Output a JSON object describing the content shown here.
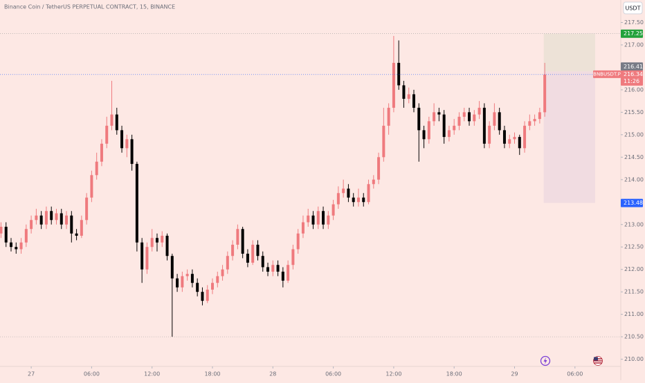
{
  "chart_data": {
    "type": "candlestick",
    "title": "Binance Coin / TetherUS PERPETUAL CONTRACT, 15, BINANCE",
    "currency": "USDT",
    "up_color": "#ef7a7e",
    "down_color": "#000000",
    "background": "#fde8e4",
    "x": [
      -3,
      -2.5,
      -2,
      -1.5,
      -1,
      -0.5,
      0,
      0.5,
      1,
      1.5,
      2,
      2.5,
      3,
      3.5,
      4,
      4.5,
      5,
      5.5,
      6,
      6.5,
      7,
      7.5,
      8,
      8.5,
      9,
      9.5,
      10,
      10.5,
      11,
      11.5,
      12,
      12.5,
      13,
      13.5,
      14,
      14.5,
      15,
      15.5,
      16,
      16.5,
      17,
      17.5,
      18,
      18.5,
      19,
      19.5,
      20,
      20.5,
      21,
      21.5,
      22,
      22.5,
      23,
      23.5,
      24,
      24.5,
      25,
      25.5,
      26,
      26.5,
      27,
      27.5,
      28,
      28.5,
      29,
      29.5,
      30,
      30.5,
      31,
      31.5,
      32,
      32.5,
      33,
      33.5,
      34,
      34.5,
      35,
      35.5,
      36,
      36.5,
      37,
      37.5,
      38,
      38.5,
      39,
      39.5,
      40,
      40.5,
      41,
      41.5,
      42,
      42.5,
      43,
      43.5,
      44,
      44.5,
      45,
      45.5,
      46,
      46.5,
      47,
      47.5,
      48,
      48.5,
      49,
      49.5,
      50,
      50.5,
      51
    ],
    "open": [
      212.8,
      212.95,
      212.6,
      212.5,
      212.45,
      212.6,
      212.9,
      213.1,
      213.2,
      213,
      213.3,
      213.1,
      213.25,
      213,
      213.2,
      212.8,
      212.75,
      213.1,
      213.6,
      214.1,
      214.4,
      214.8,
      215.2,
      215.45,
      215.1,
      214.7,
      214.9,
      214.35,
      212.6,
      212,
      212.5,
      212.7,
      212.6,
      212.75,
      212.3,
      211.8,
      211.6,
      211.85,
      211.9,
      211.7,
      211.5,
      211.3,
      211.55,
      211.7,
      211.85,
      212,
      212.3,
      212.55,
      212.9,
      212.35,
      212.15,
      212.55,
      212.3,
      212.05,
      211.95,
      212.1,
      211.95,
      211.75,
      212.1,
      212.45,
      212.8,
      213.05,
      213.2,
      213,
      213.3,
      213,
      213.2,
      213.45,
      213.7,
      213.8,
      213.6,
      213.5,
      213.6,
      213.5,
      213.9,
      214,
      214.5,
      215.2,
      215.6,
      216.6,
      216.1,
      215.8,
      215.9,
      215.6,
      215.1,
      214.9,
      215.3,
      215.5,
      215.45,
      214.95,
      215.1,
      215.2,
      215.4,
      215.5,
      215.3,
      215.45,
      215.6,
      214.8,
      215.2,
      215.5,
      215.1,
      214.8,
      214.9,
      214.95,
      214.7,
      215.2,
      215.3,
      215.35,
      215.5
    ],
    "high": [
      213.05,
      213.05,
      212.7,
      212.6,
      212.7,
      213,
      213.2,
      213.35,
      213.3,
      213.4,
      213.4,
      213.35,
      213.35,
      213.3,
      213.3,
      212.9,
      213.2,
      213.7,
      214.2,
      214.6,
      214.9,
      215.4,
      216.2,
      215.6,
      215.2,
      215,
      215,
      214.4,
      212.7,
      212.6,
      212.9,
      212.8,
      212.85,
      212.8,
      212.35,
      211.9,
      211.95,
      212,
      212,
      211.8,
      211.6,
      211.65,
      211.8,
      211.95,
      212.1,
      212.4,
      212.65,
      213,
      212.95,
      212.45,
      212.65,
      212.65,
      212.4,
      212.15,
      212.2,
      212.2,
      212.05,
      212.2,
      212.55,
      212.9,
      213.2,
      213.35,
      213.3,
      213.4,
      213.4,
      213.3,
      213.55,
      213.85,
      214,
      213.9,
      213.7,
      213.8,
      213.7,
      214,
      214.1,
      214.6,
      215.6,
      215.7,
      217.2,
      217.1,
      216.2,
      216.05,
      216,
      215.7,
      215.2,
      215.4,
      215.7,
      215.6,
      215.55,
      215.2,
      215.35,
      215.5,
      215.6,
      215.6,
      215.55,
      215.75,
      215.7,
      215.3,
      215.7,
      215.6,
      215.2,
      215,
      215.05,
      215,
      215.3,
      215.45,
      215.45,
      215.6,
      216.6
    ],
    "low": [
      212.7,
      212.5,
      212.4,
      212.35,
      212.35,
      212.5,
      212.8,
      213,
      212.9,
      212.9,
      213,
      213,
      212.9,
      212.9,
      212.6,
      212.65,
      212.7,
      213,
      213.5,
      214,
      214.3,
      214.7,
      215.1,
      215,
      214.6,
      214.5,
      214.2,
      212.4,
      211.7,
      211.9,
      212.4,
      212.4,
      212.5,
      212.2,
      210.5,
      211.5,
      211.5,
      211.75,
      211.6,
      211.4,
      211.2,
      211.25,
      211.45,
      211.6,
      211.75,
      211.9,
      212.2,
      212.45,
      212.25,
      212.05,
      212.1,
      212.2,
      211.95,
      211.85,
      211.85,
      211.85,
      211.6,
      211.7,
      212,
      212.35,
      212.7,
      212.95,
      212.9,
      212.9,
      212.9,
      212.9,
      213.1,
      213.35,
      213.6,
      213.5,
      213.4,
      213.4,
      213.4,
      213.45,
      213.8,
      213.9,
      214.4,
      215,
      215.5,
      216,
      215.6,
      215.7,
      215.5,
      214.4,
      214.7,
      214.8,
      215.2,
      215.3,
      214.8,
      214.85,
      215,
      215.1,
      215.3,
      215.2,
      215.2,
      215.35,
      214.7,
      214.7,
      215.1,
      215,
      214.7,
      214.7,
      214.8,
      214.55,
      214.6,
      215.1,
      215.2,
      215.25,
      215.4
    ],
    "close": [
      212.95,
      212.6,
      212.5,
      212.45,
      212.6,
      212.9,
      213.1,
      213.2,
      213,
      213.3,
      213.1,
      213.25,
      213,
      213.2,
      212.8,
      212.75,
      213.1,
      213.6,
      214.1,
      214.4,
      214.8,
      215.2,
      215.45,
      215.1,
      214.7,
      214.9,
      214.35,
      212.6,
      212,
      212.5,
      212.7,
      212.6,
      212.75,
      212.3,
      211.8,
      211.6,
      211.85,
      211.9,
      211.7,
      211.5,
      211.3,
      211.55,
      211.7,
      211.85,
      212,
      212.3,
      212.55,
      212.9,
      212.35,
      212.15,
      212.55,
      212.3,
      212.05,
      211.95,
      212.1,
      211.95,
      211.75,
      212.1,
      212.45,
      212.8,
      213.05,
      213.2,
      213,
      213.3,
      213,
      213.2,
      213.45,
      213.7,
      213.8,
      213.6,
      213.5,
      213.6,
      213.5,
      213.9,
      214,
      214.5,
      215.2,
      215.6,
      216.6,
      216.1,
      215.8,
      215.9,
      215.6,
      215.1,
      214.9,
      215.3,
      215.5,
      215.45,
      214.95,
      215.1,
      215.2,
      215.4,
      215.5,
      215.3,
      215.45,
      215.6,
      214.8,
      215.2,
      215.5,
      215.1,
      214.8,
      214.9,
      214.95,
      214.7,
      215.2,
      215.3,
      215.35,
      215.5,
      216.34
    ],
    "xlim": [
      -3.1,
      58.55
    ],
    "ylim": [
      209.84,
      218.0
    ],
    "xticks": [
      {
        "value": 0,
        "label": "27"
      },
      {
        "value": 6,
        "label": "06:00"
      },
      {
        "value": 12,
        "label": "12:00"
      },
      {
        "value": 18,
        "label": "18:00"
      },
      {
        "value": 24,
        "label": "28"
      },
      {
        "value": 30,
        "label": "06:00"
      },
      {
        "value": 36,
        "label": "12:00"
      },
      {
        "value": 42,
        "label": "18:00"
      },
      {
        "value": 48,
        "label": "29"
      },
      {
        "value": 54,
        "label": "06:00"
      }
    ],
    "yticks": [
      {
        "value": 217.5,
        "label": "217.50"
      },
      {
        "value": 217,
        "label": "217.00"
      },
      {
        "value": 216,
        "label": "216.00"
      },
      {
        "value": 215.5,
        "label": "215.50"
      },
      {
        "value": 215,
        "label": "215.00"
      },
      {
        "value": 214.5,
        "label": "214.50"
      },
      {
        "value": 214,
        "label": "214.00"
      },
      {
        "value": 213,
        "label": "213.00"
      },
      {
        "value": 212.5,
        "label": "212.50"
      },
      {
        "value": 212,
        "label": "212.00"
      },
      {
        "value": 211.5,
        "label": "211.50"
      },
      {
        "value": 211,
        "label": "211.00"
      },
      {
        "value": 210.5,
        "label": "210.50"
      },
      {
        "value": 210,
        "label": "210.00"
      }
    ],
    "hlines": [
      210.5
    ],
    "position": {
      "start": 50.9,
      "end": 56.0,
      "target": 217.25,
      "entry": 216.41,
      "stop": 213.48,
      "target_color": "#22a13b",
      "entry_color": "#787b86",
      "stop_color": "#2962ff"
    },
    "price_tag": {
      "symbol": "BNBUSDT.P",
      "countdown": "11:26"
    }
  }
}
